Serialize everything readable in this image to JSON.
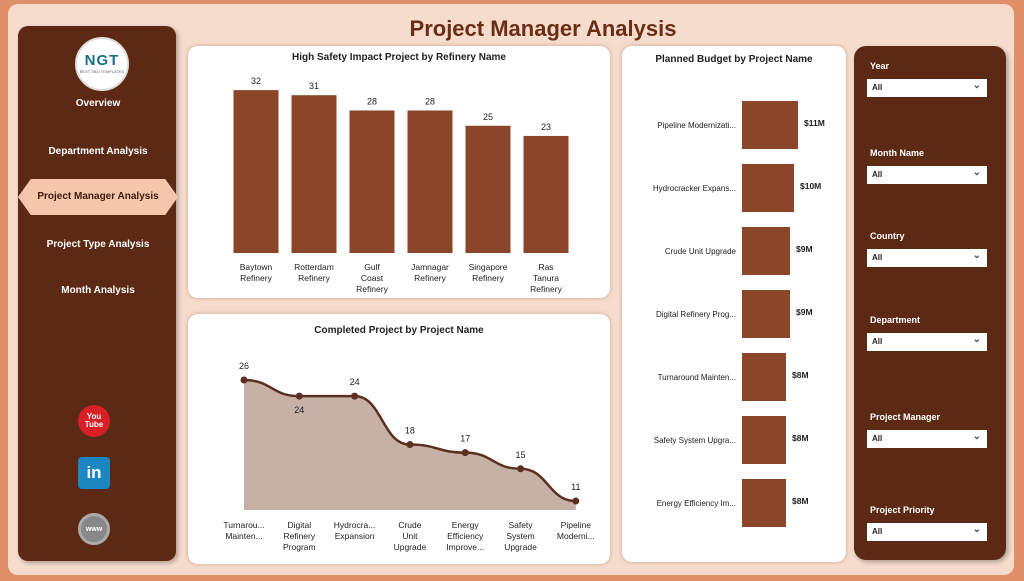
{
  "header": {
    "title": "Project Manager Analysis"
  },
  "logo": {
    "text": "NGT",
    "tagline": "BEST XBO TEMPLATES"
  },
  "nav": {
    "items": [
      {
        "label": "Overview"
      },
      {
        "label": "Department Analysis"
      },
      {
        "label": "Project Manager Analysis",
        "active": true
      },
      {
        "label": "Project Type Analysis"
      },
      {
        "label": "Month Analysis"
      }
    ]
  },
  "social": [
    {
      "icon": "youtube-icon"
    },
    {
      "icon": "linkedin-icon"
    },
    {
      "icon": "website-globe-icon"
    }
  ],
  "colors": {
    "bar": "#8b4528",
    "sidebar": "#5c2a14",
    "line": "#5c3020",
    "area": "#c7b0a6",
    "accent": "#f5c6ab"
  },
  "chart_data": [
    {
      "type": "bar",
      "title": "High Safety Impact Project by Refinery Name",
      "categories": [
        "Baytown Refinery",
        "Rotterdam Refinery",
        "Gulf Coast Refinery",
        "Jamnagar Refinery",
        "Singapore Refinery",
        "Ras Tanura Refinery"
      ],
      "values": [
        32,
        31,
        28,
        28,
        25,
        23
      ],
      "data_labels": [
        "32",
        "31",
        "28",
        "28",
        "25",
        "23"
      ]
    },
    {
      "type": "area",
      "title": "Completed Project by Project Name",
      "categories": [
        "Turnarou... Mainten...",
        "Digital Refinery Program",
        "Hydrocra... Expansion",
        "Crude Unit Upgrade",
        "Energy Efficiency Improve...",
        "Safety System Upgrade",
        "Pipeline Moderni..."
      ],
      "values": [
        26,
        24,
        24,
        18,
        17,
        15,
        11
      ],
      "data_labels": [
        "26",
        "24",
        "24",
        "18",
        "17",
        "15",
        "11"
      ]
    },
    {
      "type": "bar",
      "orientation": "horizontal",
      "title": "Planned Budget by Project Name",
      "categories": [
        "Pipeline Modernizati...",
        "Hydrocracker Expans...",
        "Crude Unit Upgrade",
        "Digital Refinery Prog...",
        "Turnaround Mainten...",
        "Safety System Upgra...",
        "Energy Efficiency Im..."
      ],
      "values": [
        11,
        10,
        9,
        9,
        8,
        8,
        8
      ],
      "data_labels": [
        "$11M",
        "$10M",
        "$9M",
        "$9M",
        "$8M",
        "$8M",
        "$8M"
      ]
    }
  ],
  "filters": [
    {
      "label": "Year",
      "value": "All"
    },
    {
      "label": "Month Name",
      "value": "All"
    },
    {
      "label": "Country",
      "value": "All"
    },
    {
      "label": "Department",
      "value": "All"
    },
    {
      "label": "Project Manager",
      "value": "All"
    },
    {
      "label": "Project Priority",
      "value": "All"
    }
  ]
}
